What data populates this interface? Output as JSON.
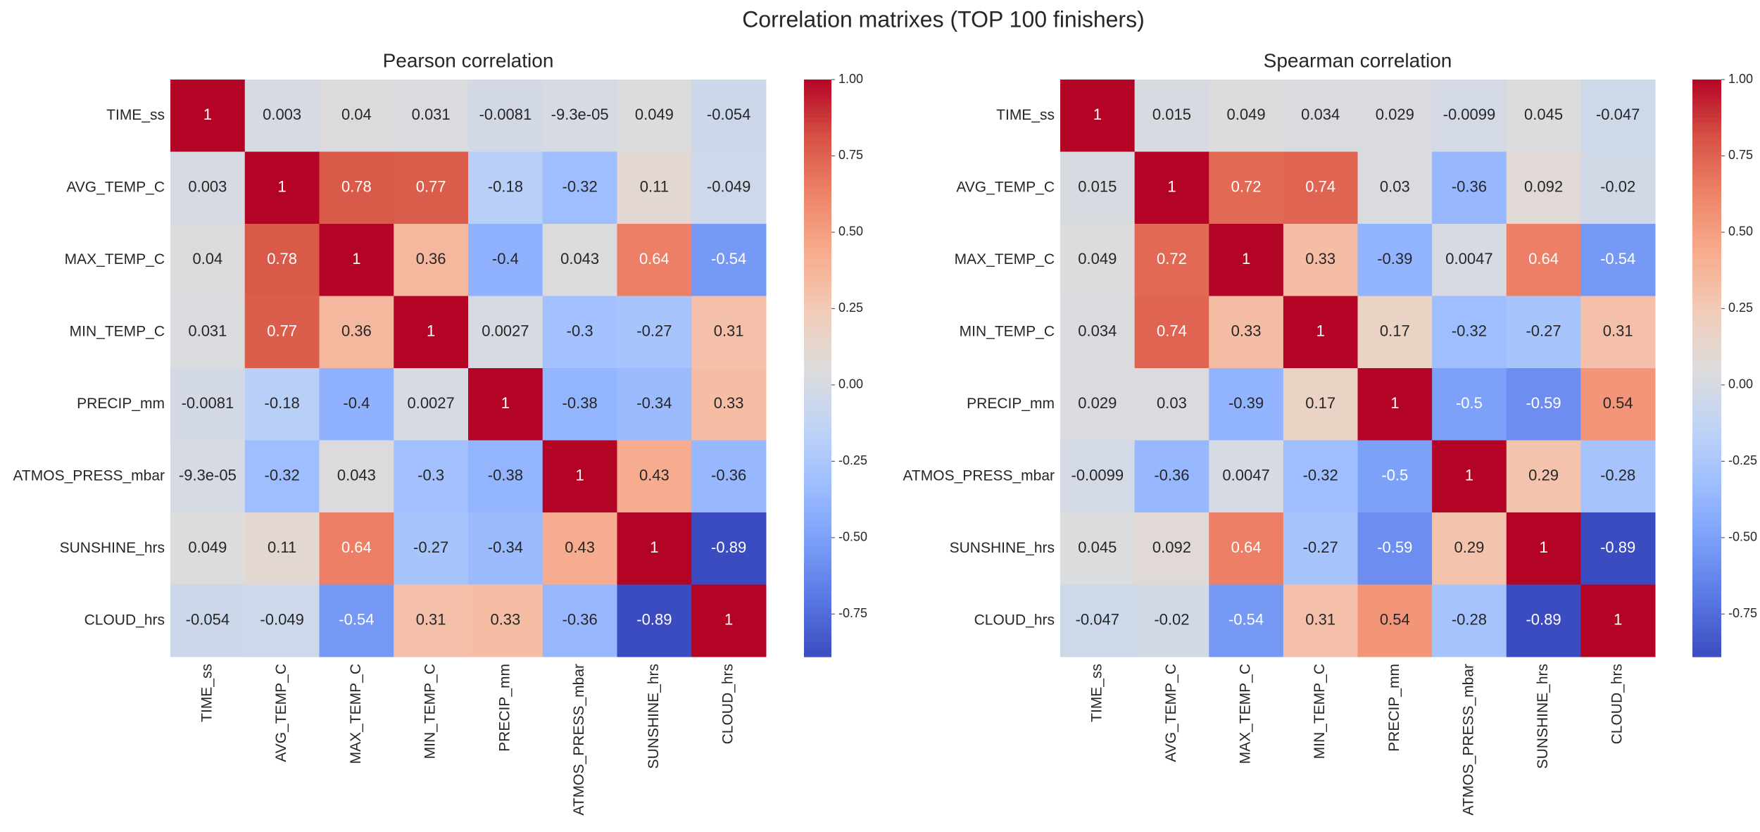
{
  "title": "Correlation matrixes (TOP 100 finishers)",
  "chart_data": [
    {
      "type": "heatmap",
      "title": "Pearson correlation",
      "labels": [
        "TIME_ss",
        "AVG_TEMP_C",
        "MAX_TEMP_C",
        "MIN_TEMP_C",
        "PRECIP_mm",
        "ATMOS_PRESS_mbar",
        "SUNSHINE_hrs",
        "CLOUD_hrs"
      ],
      "values": [
        [
          1,
          0.003,
          0.04,
          0.031,
          -0.0081,
          -9.3e-05,
          0.049,
          -0.054
        ],
        [
          0.003,
          1,
          0.78,
          0.77,
          -0.18,
          -0.32,
          0.11,
          -0.049
        ],
        [
          0.04,
          0.78,
          1,
          0.36,
          -0.4,
          0.043,
          0.64,
          -0.54
        ],
        [
          0.031,
          0.77,
          0.36,
          1,
          0.0027,
          -0.3,
          -0.27,
          0.31
        ],
        [
          -0.0081,
          -0.18,
          -0.4,
          0.0027,
          1,
          -0.38,
          -0.34,
          0.33
        ],
        [
          -9.3e-05,
          -0.32,
          0.043,
          -0.3,
          -0.38,
          1,
          0.43,
          -0.36
        ],
        [
          0.049,
          0.11,
          0.64,
          -0.27,
          -0.34,
          0.43,
          1,
          -0.89
        ],
        [
          -0.054,
          -0.049,
          -0.54,
          0.31,
          0.33,
          -0.36,
          -0.89,
          1
        ]
      ],
      "colormap": "coolwarm",
      "vrange": [
        -0.89,
        1.0
      ],
      "colorbar_ticks": [
        "1.00",
        "0.75",
        "0.50",
        "0.25",
        "0.00",
        "-0.25",
        "-0.50",
        "-0.75"
      ]
    },
    {
      "type": "heatmap",
      "title": "Spearman correlation",
      "labels": [
        "TIME_ss",
        "AVG_TEMP_C",
        "MAX_TEMP_C",
        "MIN_TEMP_C",
        "PRECIP_mm",
        "ATMOS_PRESS_mbar",
        "SUNSHINE_hrs",
        "CLOUD_hrs"
      ],
      "values": [
        [
          1,
          0.015,
          0.049,
          0.034,
          0.029,
          -0.0099,
          0.045,
          -0.047
        ],
        [
          0.015,
          1,
          0.72,
          0.74,
          0.03,
          -0.36,
          0.092,
          -0.02
        ],
        [
          0.049,
          0.72,
          1,
          0.33,
          -0.39,
          0.0047,
          0.64,
          -0.54
        ],
        [
          0.034,
          0.74,
          0.33,
          1,
          0.17,
          -0.32,
          -0.27,
          0.31
        ],
        [
          0.029,
          0.03,
          -0.39,
          0.17,
          1,
          -0.5,
          -0.59,
          0.54
        ],
        [
          -0.0099,
          -0.36,
          0.0047,
          -0.32,
          -0.5,
          1,
          0.29,
          -0.28
        ],
        [
          0.045,
          0.092,
          0.64,
          -0.27,
          -0.59,
          0.29,
          1,
          -0.89
        ],
        [
          -0.047,
          -0.02,
          -0.54,
          0.31,
          0.54,
          -0.28,
          -0.89,
          1
        ]
      ],
      "colormap": "coolwarm",
      "vrange": [
        -0.89,
        1.0
      ],
      "colorbar_ticks": [
        "1.00",
        "0.75",
        "0.50",
        "0.25",
        "0.00",
        "-0.25",
        "-0.50",
        "-0.75"
      ]
    }
  ]
}
